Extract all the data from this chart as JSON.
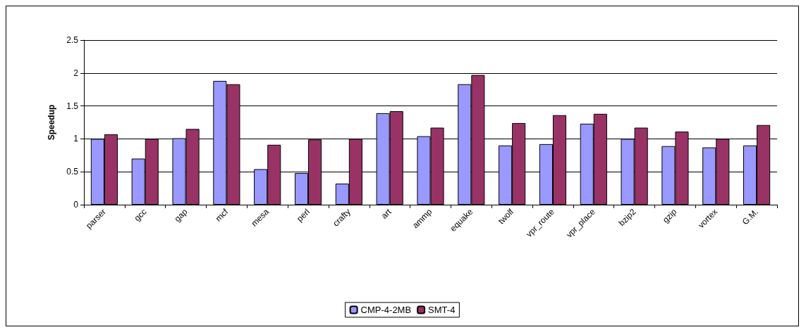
{
  "chart_data": {
    "type": "bar",
    "ylabel": "Speedup",
    "categories": [
      "parser",
      "gcc",
      "gap",
      "mcf",
      "mesa",
      "perl",
      "crafty",
      "art",
      "ammp",
      "equake",
      "twolf",
      "vpr_route",
      "vpr_place",
      "bzip2",
      "gzip",
      "vortex",
      "G.M."
    ],
    "series": [
      {
        "name": "CMP-4-2MB",
        "color": "#9999ff",
        "values": [
          1.0,
          0.7,
          1.01,
          1.88,
          0.54,
          0.48,
          0.32,
          1.39,
          1.04,
          1.83,
          0.9,
          0.92,
          1.23,
          1.0,
          0.89,
          0.87,
          0.9
        ]
      },
      {
        "name": "SMT-4",
        "color": "#993366",
        "values": [
          1.07,
          1.0,
          1.15,
          1.83,
          0.91,
          0.99,
          1.0,
          1.42,
          1.17,
          1.97,
          1.24,
          1.36,
          1.38,
          1.17,
          1.11,
          1.0,
          1.21
        ]
      }
    ],
    "ylim": [
      0,
      2.5
    ],
    "yticks": [
      0,
      0.5,
      1,
      1.5,
      2,
      2.5
    ],
    "grid": "y",
    "legend": "bottom"
  }
}
